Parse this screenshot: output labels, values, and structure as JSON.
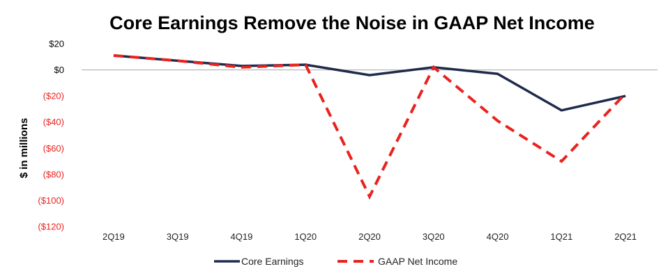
{
  "chart_data": {
    "type": "line",
    "title": "Core Earnings Remove the Noise in GAAP Net Income",
    "xlabel": "",
    "ylabel": "$ in millions",
    "categories": [
      "2Q19",
      "3Q19",
      "4Q19",
      "1Q20",
      "2Q20",
      "3Q20",
      "4Q20",
      "1Q21",
      "2Q21"
    ],
    "ylim": [
      -120,
      20
    ],
    "yticks": [
      {
        "value": 20,
        "label": "$20",
        "color": "#000000"
      },
      {
        "value": 0,
        "label": "$0",
        "color": "#000000"
      },
      {
        "value": -20,
        "label": "($20)",
        "color": "#e8231f"
      },
      {
        "value": -40,
        "label": "($40)",
        "color": "#e8231f"
      },
      {
        "value": -60,
        "label": "($60)",
        "color": "#e8231f"
      },
      {
        "value": -80,
        "label": "($80)",
        "color": "#e8231f"
      },
      {
        "value": -100,
        "label": "($100)",
        "color": "#e8231f"
      },
      {
        "value": -120,
        "label": "($120)",
        "color": "#e8231f"
      }
    ],
    "zero_line": true,
    "grid": false,
    "legend_position": "bottom",
    "series": [
      {
        "name": "Core Earnings",
        "color": "#1f2a4d",
        "style": "solid",
        "values": [
          11,
          7,
          3,
          4,
          -4,
          2,
          -3,
          -31,
          -20
        ]
      },
      {
        "name": "GAAP Net Income",
        "color": "#e8231f",
        "style": "dashed",
        "values": [
          11,
          7,
          2,
          4,
          -97,
          2,
          -39,
          -70,
          -18
        ]
      }
    ]
  }
}
